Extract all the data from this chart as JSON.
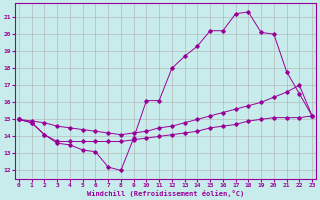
{
  "xlabel": "Windchill (Refroidissement éolien,°C)",
  "bg_color": "#c8ecec",
  "grid_color": "#b0b0b0",
  "line_color": "#990099",
  "xlim": [
    -0.3,
    23.3
  ],
  "ylim": [
    11.5,
    21.8
  ],
  "xticks": [
    0,
    1,
    2,
    3,
    4,
    5,
    6,
    7,
    8,
    9,
    10,
    11,
    12,
    13,
    14,
    15,
    16,
    17,
    18,
    19,
    20,
    21,
    22,
    23
  ],
  "yticks": [
    12,
    13,
    14,
    15,
    16,
    17,
    18,
    19,
    20,
    21
  ],
  "line1_x": [
    0,
    1,
    2,
    3,
    4,
    5,
    6,
    7,
    8,
    9,
    10,
    11,
    12,
    13,
    14,
    15,
    16,
    17,
    18,
    19,
    20,
    21,
    22,
    23
  ],
  "line1_y": [
    15.0,
    14.8,
    14.1,
    13.6,
    13.5,
    13.2,
    13.1,
    12.2,
    12.0,
    13.9,
    16.1,
    16.1,
    18.0,
    18.7,
    19.3,
    20.2,
    20.2,
    21.2,
    21.3,
    20.1,
    20.0,
    17.8,
    16.5,
    15.2
  ],
  "line2_x": [
    0,
    1,
    2,
    3,
    4,
    5,
    6,
    7,
    8,
    9,
    10,
    11,
    12,
    13,
    14,
    15,
    16,
    17,
    18,
    19,
    20,
    21,
    22,
    23
  ],
  "line2_y": [
    15.0,
    14.9,
    14.8,
    14.6,
    14.5,
    14.4,
    14.3,
    14.2,
    14.1,
    14.2,
    14.3,
    14.5,
    14.6,
    14.8,
    15.0,
    15.2,
    15.4,
    15.6,
    15.8,
    16.0,
    16.3,
    16.6,
    17.0,
    15.2
  ],
  "line3_x": [
    0,
    1,
    2,
    3,
    4,
    5,
    6,
    7,
    8,
    9,
    10,
    11,
    12,
    13,
    14,
    15,
    16,
    17,
    18,
    19,
    20,
    21,
    22,
    23
  ],
  "line3_y": [
    15.0,
    14.8,
    14.1,
    13.7,
    13.7,
    13.7,
    13.7,
    13.7,
    13.7,
    13.8,
    13.9,
    14.0,
    14.1,
    14.2,
    14.3,
    14.5,
    14.6,
    14.7,
    14.9,
    15.0,
    15.1,
    15.1,
    15.1,
    15.2
  ]
}
